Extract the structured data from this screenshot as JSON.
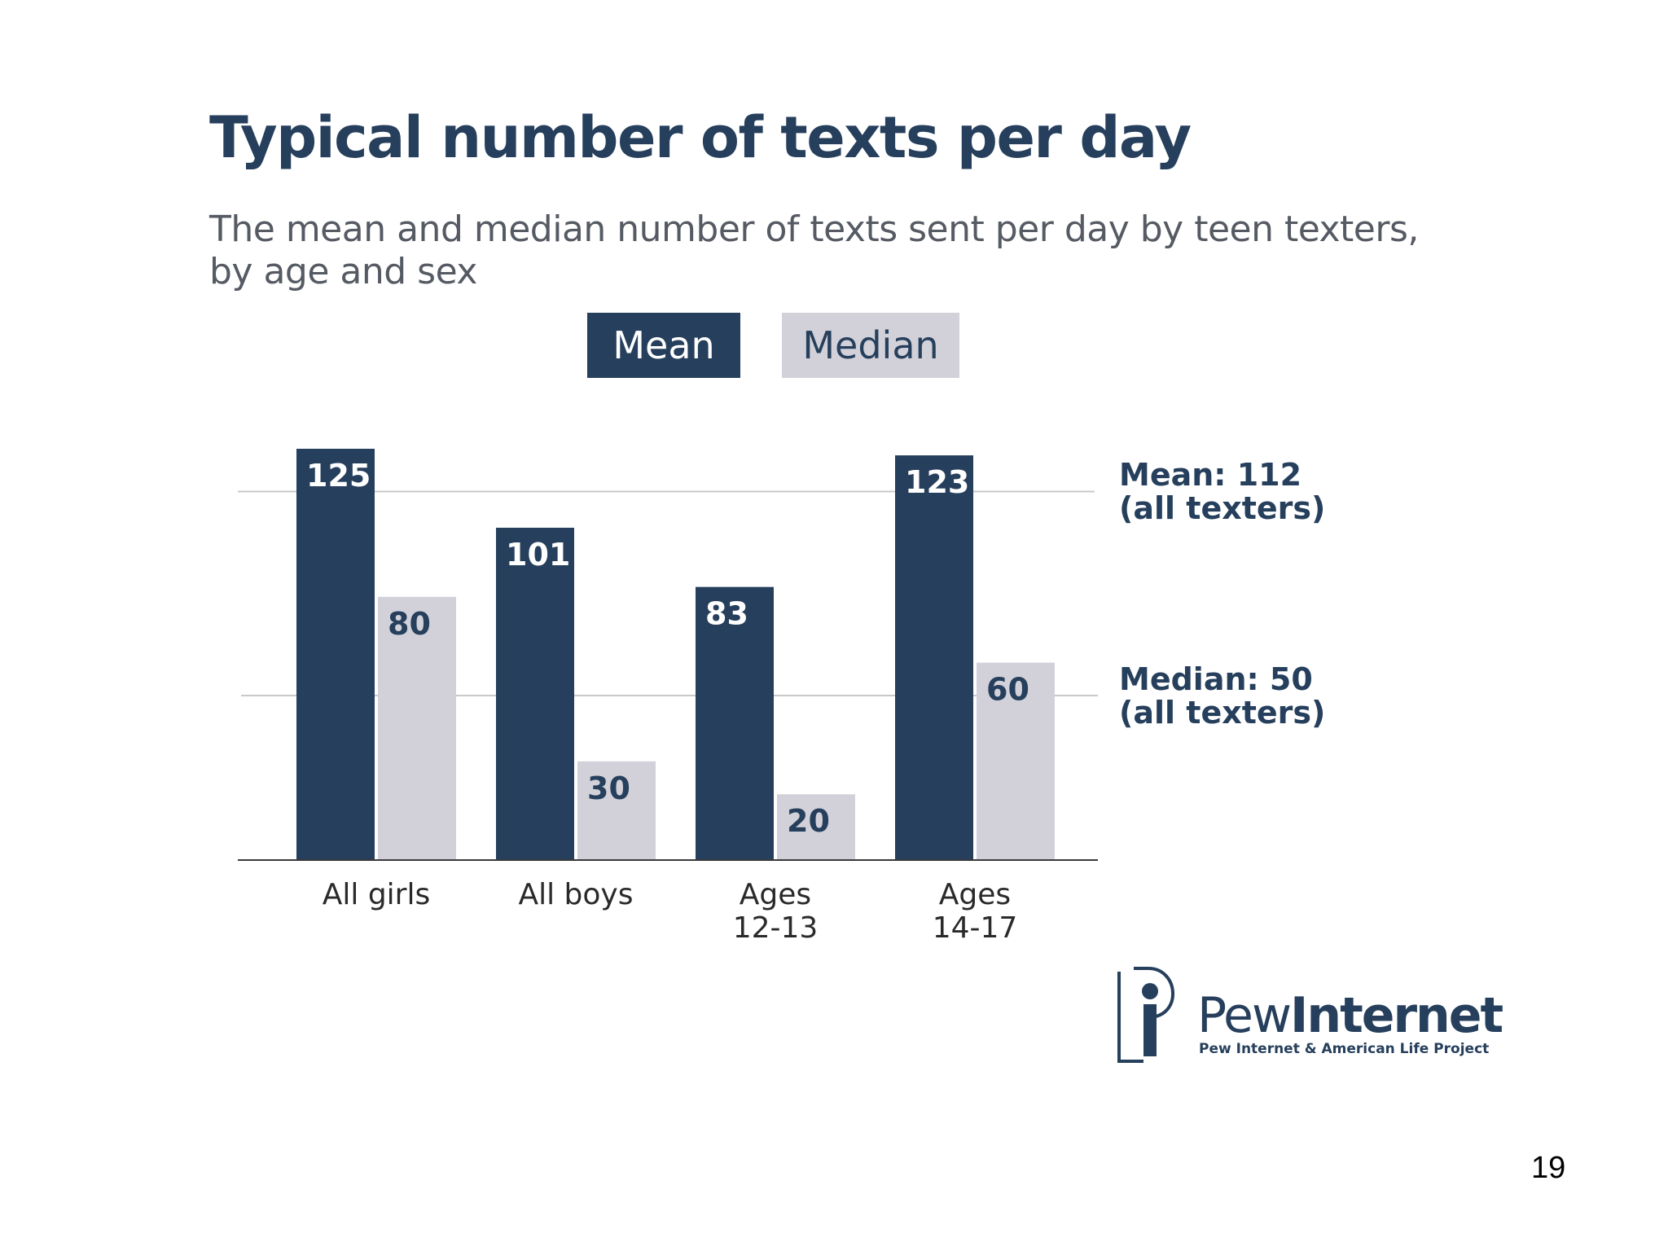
{
  "slide": {
    "page_number": "19"
  },
  "logo": {
    "text": "Pew Internet",
    "tagline": "Pew Internet & American Life Project"
  },
  "colors": {
    "mean": "#263f5c",
    "median": "#d2d1d9",
    "text_dark": "#263f5c",
    "subtitle": "#555a63"
  },
  "chart_data": {
    "type": "bar",
    "title": "Typical number of texts per day",
    "subtitle": "The mean and median number of texts sent per day by teen texters, by age and sex",
    "categories": [
      [
        "All girls"
      ],
      [
        "All boys"
      ],
      [
        "Ages",
        "12-13"
      ],
      [
        "Ages",
        "14-17"
      ]
    ],
    "series": [
      {
        "name": "Mean",
        "values": [
          125,
          101,
          83,
          123
        ]
      },
      {
        "name": "Median",
        "values": [
          80,
          30,
          20,
          60
        ]
      }
    ],
    "reference_lines": [
      {
        "value": 112,
        "label": [
          "Mean: 112",
          "(all texters)"
        ]
      },
      {
        "value": 50,
        "label": [
          "Median: 50",
          "(all texters)"
        ]
      }
    ],
    "ylim": [
      0,
      125
    ],
    "legend": "top-center",
    "grid": false
  }
}
